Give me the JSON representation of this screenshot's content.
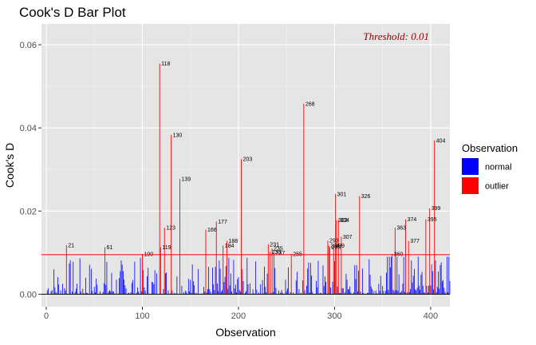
{
  "chart_data": {
    "type": "bar",
    "title": "Cook's D Bar Plot",
    "xlabel": "Observation",
    "ylabel": "Cook's D",
    "xlim": [
      -5,
      420
    ],
    "ylim": [
      -0.003,
      0.065
    ],
    "x_ticks": [
      0,
      100,
      200,
      300,
      400
    ],
    "x_tick_labels": [
      "0",
      "100",
      "200",
      "300",
      "400"
    ],
    "y_ticks": [
      0,
      0.02,
      0.04,
      0.06
    ],
    "y_tick_labels": [
      "0.00",
      "0.02",
      "0.04",
      "0.06"
    ],
    "threshold": 0.0095,
    "threshold_label": "Threshold: 0.01",
    "grid": true,
    "legend": {
      "title": "Observation",
      "position": "right",
      "entries": [
        {
          "name": "normal",
          "color": "#0000ff"
        },
        {
          "name": "outlier",
          "color": "#ff0000"
        }
      ]
    },
    "outliers": [
      {
        "obs": 21,
        "value": 0.0118,
        "label": "21"
      },
      {
        "obs": 61,
        "value": 0.0113,
        "label": "61"
      },
      {
        "obs": 100,
        "value": 0.0097,
        "label": "100"
      },
      {
        "obs": 118,
        "value": 0.0555,
        "label": "118"
      },
      {
        "obs": 119,
        "value": 0.0113,
        "label": "119"
      },
      {
        "obs": 123,
        "value": 0.016,
        "label": "123"
      },
      {
        "obs": 130,
        "value": 0.0383,
        "label": "130"
      },
      {
        "obs": 139,
        "value": 0.0277,
        "label": "139"
      },
      {
        "obs": 166,
        "value": 0.0155,
        "label": "166"
      },
      {
        "obs": 177,
        "value": 0.0175,
        "label": "177"
      },
      {
        "obs": 184,
        "value": 0.0117,
        "label": "184"
      },
      {
        "obs": 188,
        "value": 0.0128,
        "label": "188"
      },
      {
        "obs": 203,
        "value": 0.0325,
        "label": "203"
      },
      {
        "obs": 231,
        "value": 0.012,
        "label": "231"
      },
      {
        "obs": 233,
        "value": 0.0102,
        "label": "233"
      },
      {
        "obs": 235,
        "value": 0.011,
        "label": "235"
      },
      {
        "obs": 237,
        "value": 0.01,
        "label": "237"
      },
      {
        "obs": 255,
        "value": 0.0097,
        "label": "255"
      },
      {
        "obs": 268,
        "value": 0.0458,
        "label": "268"
      },
      {
        "obs": 293,
        "value": 0.0129,
        "label": "293"
      },
      {
        "obs": 294,
        "value": 0.0117,
        "label": "294"
      },
      {
        "obs": 295,
        "value": 0.0113,
        "label": "295"
      },
      {
        "obs": 299,
        "value": 0.0117,
        "label": "299"
      },
      {
        "obs": 301,
        "value": 0.0241,
        "label": "301"
      },
      {
        "obs": 302,
        "value": 0.0178,
        "label": "302"
      },
      {
        "obs": 304,
        "value": 0.0178,
        "label": "304"
      },
      {
        "obs": 307,
        "value": 0.0138,
        "label": "307"
      },
      {
        "obs": 326,
        "value": 0.0236,
        "label": "326"
      },
      {
        "obs": 360,
        "value": 0.0097,
        "label": "360"
      },
      {
        "obs": 363,
        "value": 0.016,
        "label": "363"
      },
      {
        "obs": 374,
        "value": 0.018,
        "label": "374"
      },
      {
        "obs": 377,
        "value": 0.0128,
        "label": "377"
      },
      {
        "obs": 395,
        "value": 0.018,
        "label": "395"
      },
      {
        "obs": 399,
        "value": 0.0207,
        "label": "399"
      },
      {
        "obs": 404,
        "value": 0.037,
        "label": "404"
      }
    ],
    "normal_max": 0.0095,
    "normal_count": 420
  }
}
